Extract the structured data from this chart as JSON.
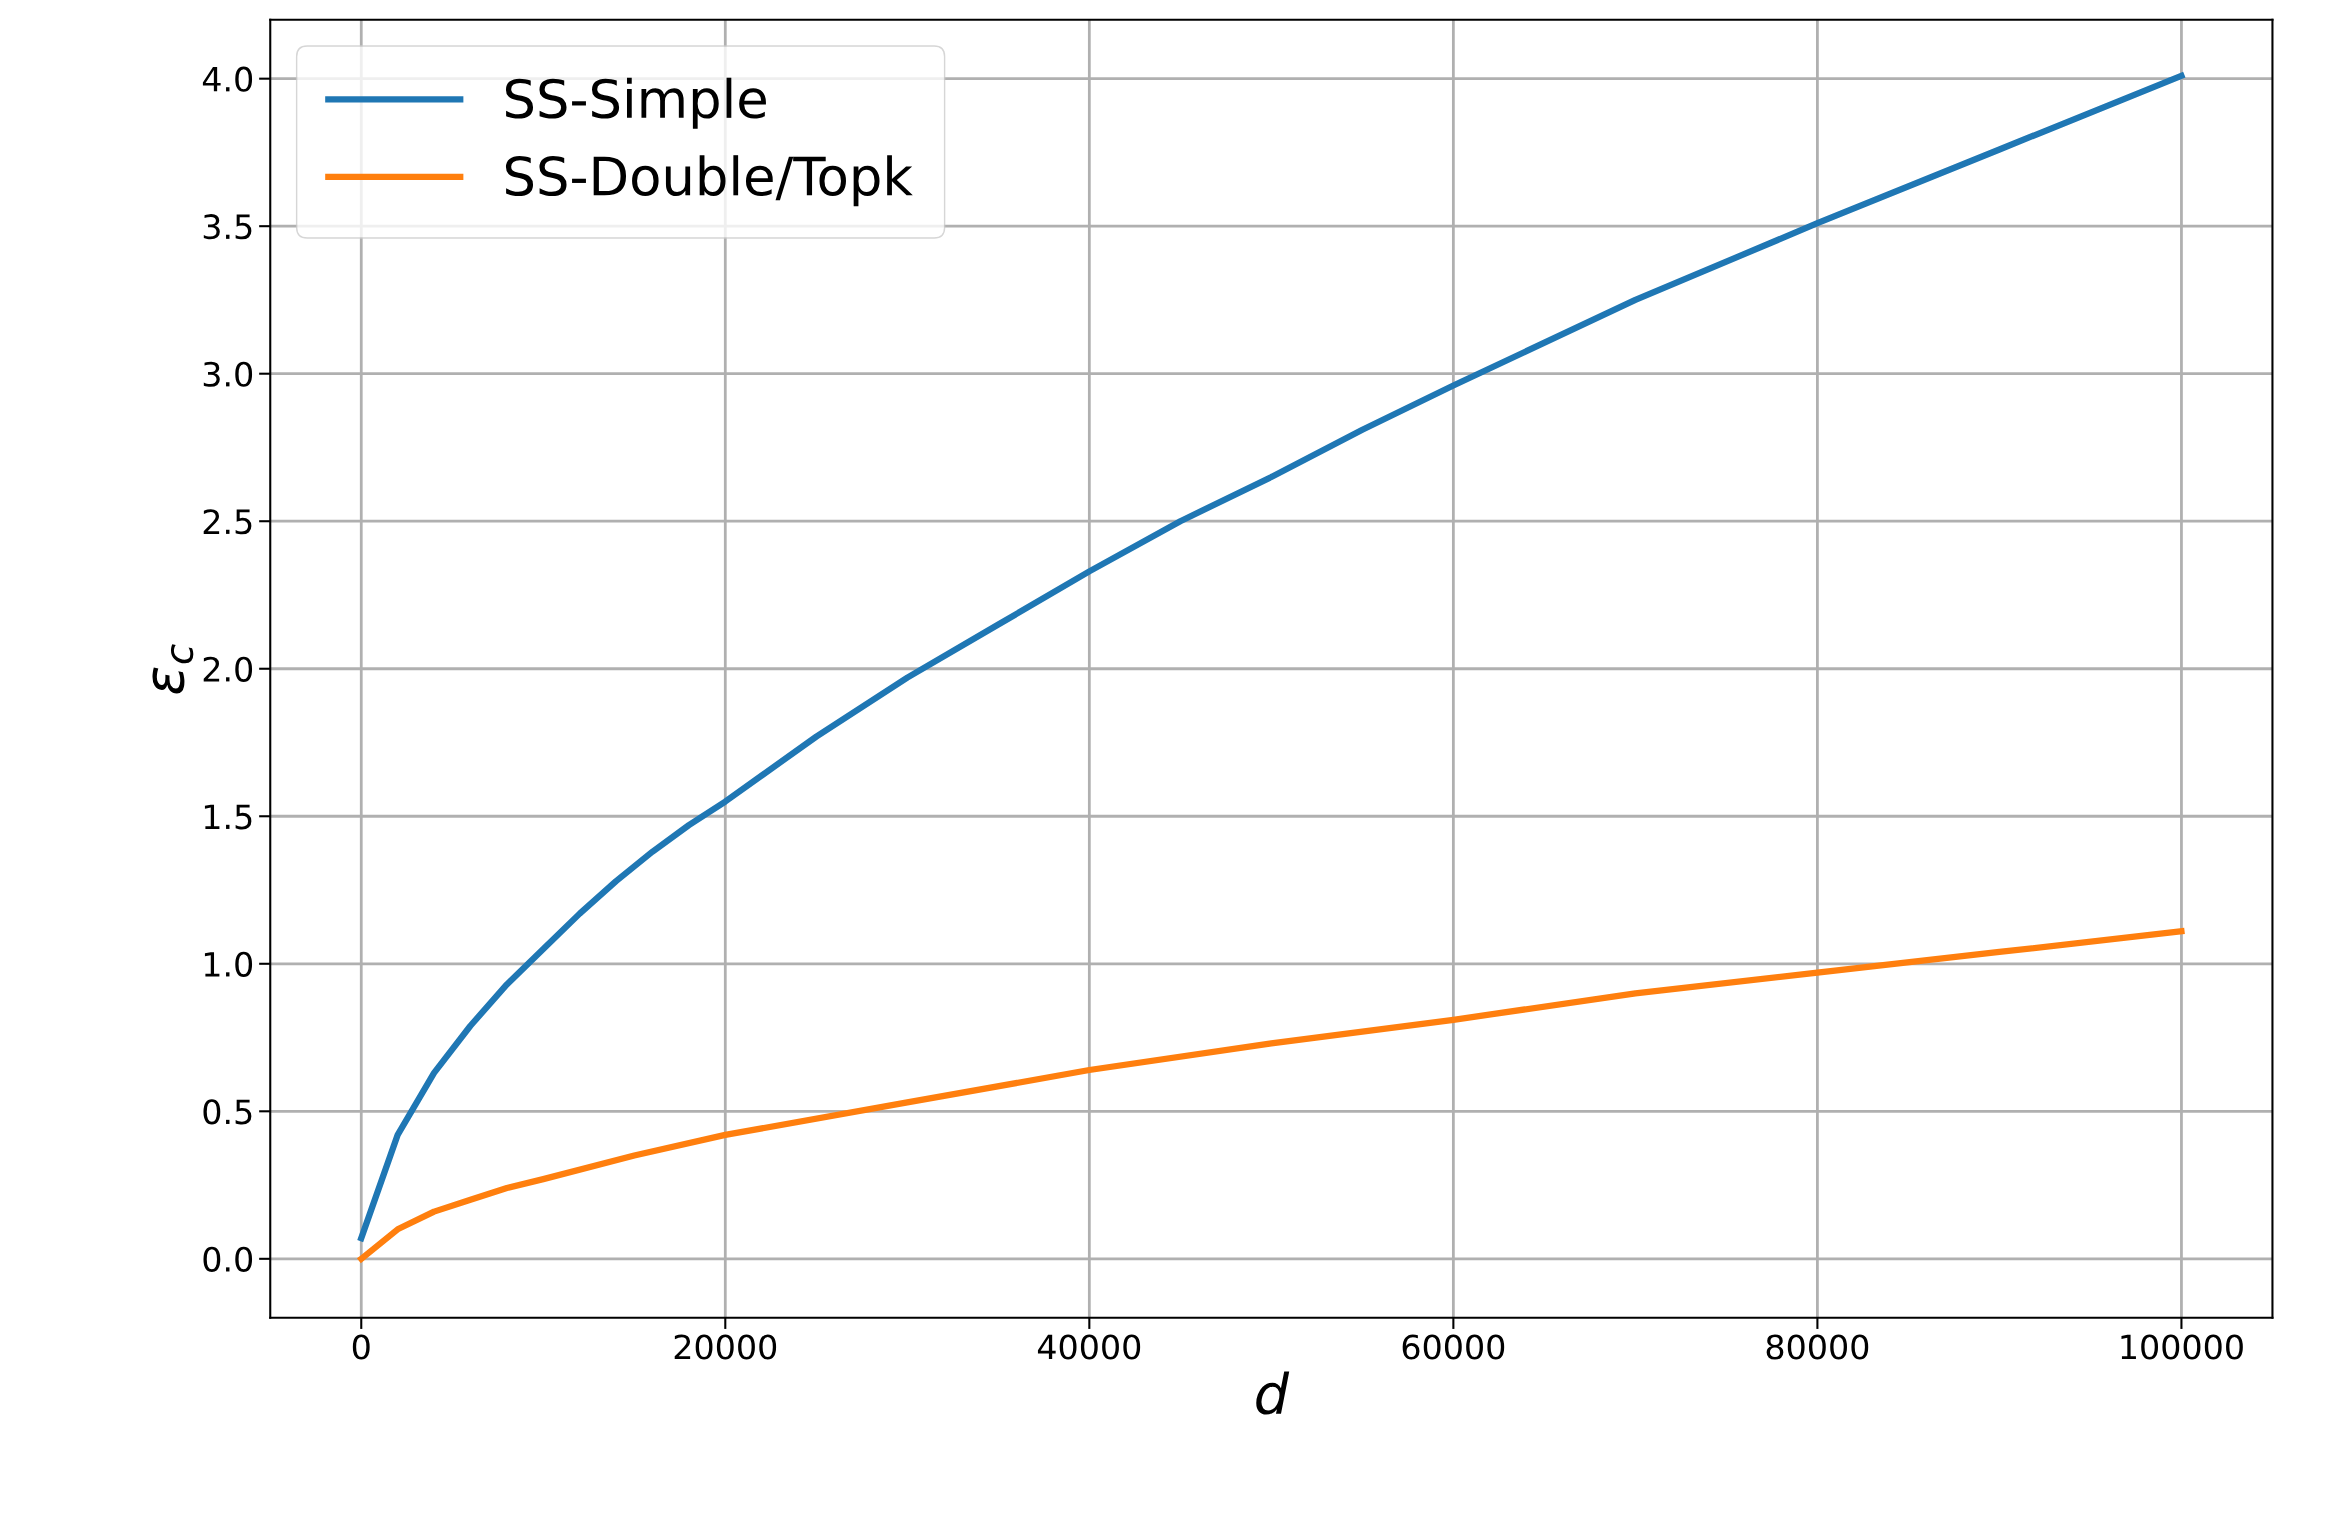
{
  "chart_data": {
    "type": "line",
    "xlabel": "d",
    "ylabel": "ε$_{c}$",
    "series": [
      {
        "name": "SS-Simple",
        "color": "#1f77b4",
        "x": [
          0,
          2000,
          4000,
          6000,
          8000,
          10000,
          12000,
          14000,
          16000,
          18000,
          20000,
          25000,
          30000,
          35000,
          40000,
          45000,
          50000,
          55000,
          60000,
          70000,
          80000,
          90000,
          100000
        ],
        "values": [
          0.07,
          0.42,
          0.63,
          0.79,
          0.93,
          1.05,
          1.17,
          1.28,
          1.38,
          1.47,
          1.55,
          1.77,
          1.97,
          2.15,
          2.33,
          2.5,
          2.65,
          2.81,
          2.96,
          3.25,
          3.51,
          3.76,
          4.01
        ]
      },
      {
        "name": "SS-Double/Topk",
        "color": "#ff7f0e",
        "x": [
          0,
          2000,
          4000,
          6000,
          8000,
          10000,
          15000,
          20000,
          30000,
          40000,
          50000,
          60000,
          70000,
          80000,
          90000,
          100000
        ],
        "values": [
          0.0,
          0.1,
          0.16,
          0.2,
          0.24,
          0.27,
          0.35,
          0.42,
          0.53,
          0.64,
          0.73,
          0.81,
          0.9,
          0.97,
          1.04,
          1.11
        ]
      }
    ],
    "xlim": [
      -5000,
      105000
    ],
    "xticks": [
      0,
      20000,
      40000,
      60000,
      80000,
      100000
    ],
    "ylim": [
      -0.2,
      4.2
    ],
    "yticks": [
      {
        "value": 0,
        "label": "0.0"
      },
      {
        "value": 0.5,
        "label": "0.5"
      },
      {
        "value": 1,
        "label": "1.0"
      },
      {
        "value": 1.5,
        "label": "1.5"
      },
      {
        "value": 2,
        "label": "2.0"
      },
      {
        "value": 2.5,
        "label": "2.5"
      },
      {
        "value": 3,
        "label": "3.0"
      },
      {
        "value": 3.5,
        "label": "3.5"
      },
      {
        "value": 4,
        "label": "4.0"
      }
    ],
    "grid": true,
    "legend": "top left",
    "marker": "none",
    "line_style": "solid"
  }
}
